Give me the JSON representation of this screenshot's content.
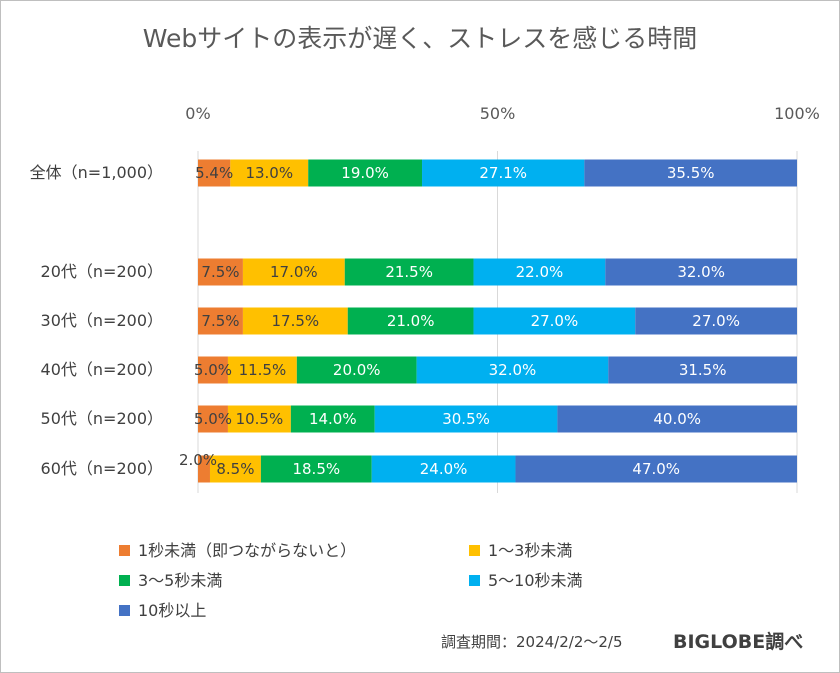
{
  "chart_data": {
    "type": "bar",
    "orientation": "horizontal-stacked-100",
    "title": "Webサイトの表示が遅く、ストレスを感じる時間",
    "xticks": [
      "0%",
      "50%",
      "100%"
    ],
    "xlim": [
      0,
      100
    ],
    "grid": true,
    "legend_position": "bottom",
    "categories": [
      "全体（n=1,000）",
      "20代（n=200）",
      "30代（n=200）",
      "40代（n=200）",
      "50代（n=200）",
      "60代（n=200）"
    ],
    "series": [
      {
        "name": "1秒未満（即つながらないと）",
        "color": "#ED7D31",
        "values": [
          5.4,
          7.5,
          7.5,
          5.0,
          5.0,
          2.0
        ],
        "labels": [
          "5.4%",
          "7.5%",
          "7.5%",
          "5.0%",
          "5.0%",
          "2.0%"
        ]
      },
      {
        "name": "1～3秒未満",
        "color": "#FFC000",
        "values": [
          13.0,
          17.0,
          17.5,
          11.5,
          10.5,
          8.5
        ],
        "labels": [
          "13.0%",
          "17.0%",
          "17.5%",
          "11.5%",
          "10.5%",
          "8.5%"
        ]
      },
      {
        "name": "3～5秒未満",
        "color": "#00B050",
        "values": [
          19.0,
          21.5,
          21.0,
          20.0,
          14.0,
          18.5
        ],
        "labels": [
          "19.0%",
          "21.5%",
          "21.0%",
          "20.0%",
          "14.0%",
          "18.5%"
        ]
      },
      {
        "name": "5～10秒未満",
        "color": "#00B0F0",
        "values": [
          27.1,
          22.0,
          27.0,
          32.0,
          30.5,
          24.0
        ],
        "labels": [
          "27.1%",
          "22.0%",
          "27.0%",
          "32.0%",
          "30.5%",
          "24.0%"
        ]
      },
      {
        "name": "10秒以上",
        "color": "#4472C4",
        "values": [
          35.5,
          32.0,
          27.0,
          31.5,
          40.0,
          47.0
        ],
        "labels": [
          "35.5%",
          "32.0%",
          "27.0%",
          "31.5%",
          "40.0%",
          "47.0%"
        ]
      }
    ]
  },
  "footnote": "調査期間：2024/2/2～2/5",
  "brand": "BIGLOBE調べ"
}
